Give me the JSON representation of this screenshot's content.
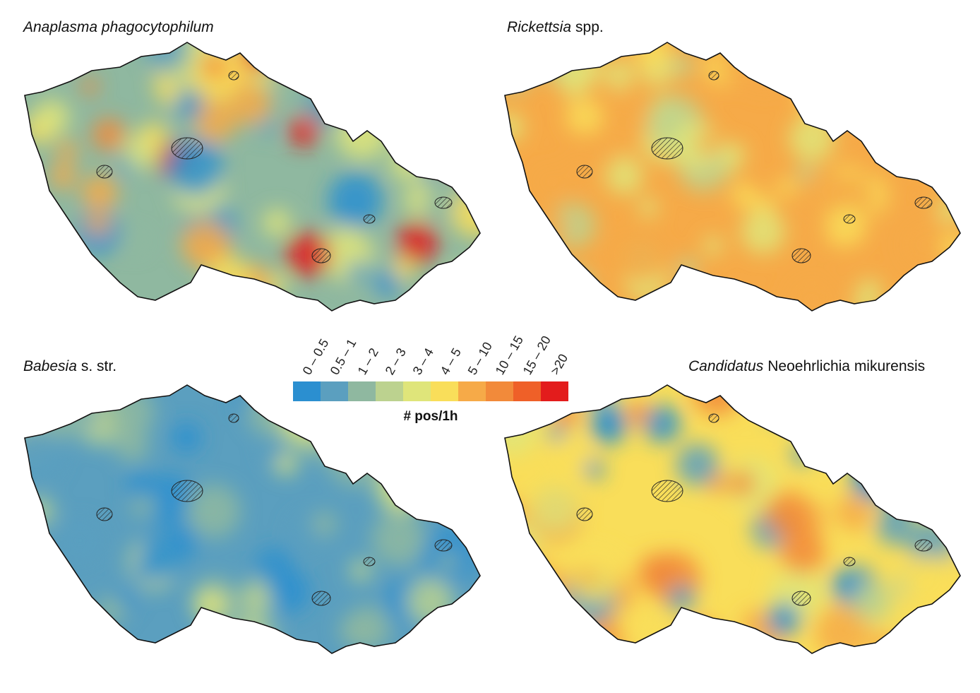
{
  "panels": [
    {
      "title_italic": "Anaplasma phagocytophilum"
    },
    {
      "title_italic": "Rickettsia",
      "title_rest": "spp."
    },
    {
      "title_italic": "Babesia",
      "title_rest": "s. str."
    },
    {
      "title_italic": "Candidatus",
      "title_rest": "Neoehrlichia mikurensis"
    }
  ],
  "legend": {
    "title": "# pos/1h",
    "bins": [
      "0 – 0.5",
      "0.5 – 1",
      "1 – 2",
      "2 – 3",
      "3 – 4",
      "4 – 5",
      "5 – 10",
      "10 – 15",
      "15 – 20",
      ">20"
    ],
    "colors": [
      "#2b8fd0",
      "#5b9fbf",
      "#8fb8a0",
      "#bcd28f",
      "#dfe57a",
      "#f9de5a",
      "#f6aa48",
      "#f28a3a",
      "#ef6028",
      "#e31c1c"
    ]
  }
}
